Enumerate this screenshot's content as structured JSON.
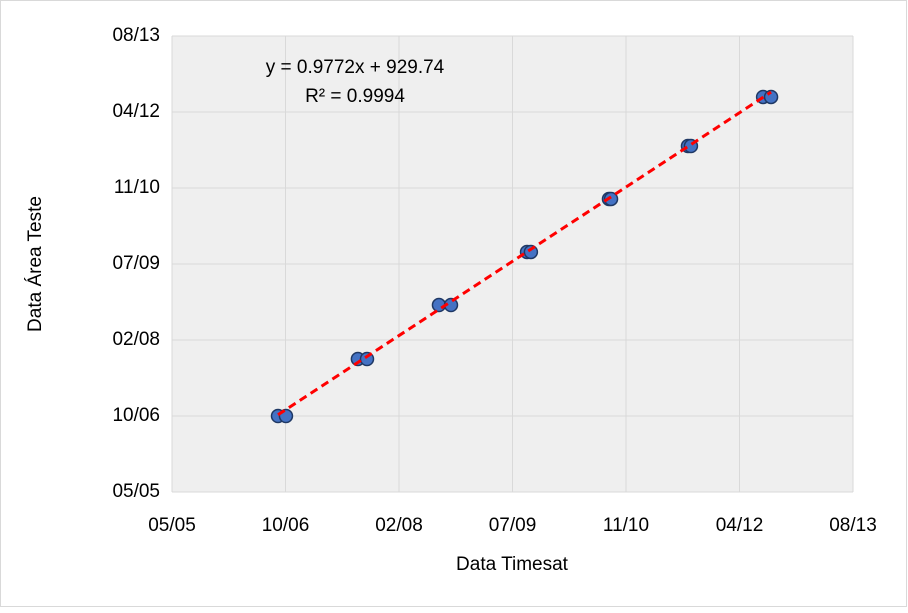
{
  "chart_data": {
    "type": "scatter",
    "x_label": "Data Timesat",
    "y_label": "Data Área Teste",
    "x": [
      38967,
      39002,
      39319,
      39359,
      39676,
      39729,
      40064,
      40081,
      40425,
      40434,
      40773,
      40786,
      41104,
      41139
    ],
    "series": [
      {
        "color": "#4472c4",
        "values": [
          39000,
          39000,
          39375,
          39375,
          39730,
          39730,
          40079,
          40079,
          40428,
          40428,
          40776,
          40776,
          41099,
          41099
        ]
      }
    ],
    "trendline": {
      "equation": "y = 0.9772x + 929.74",
      "r_squared": "R² = 0.9994",
      "slope": 0.9772,
      "intercept": 929.74,
      "color": "#ff0000"
    },
    "xlim": [
      38500,
      41500
    ],
    "ylim": [
      38500,
      41500
    ],
    "xticks": [
      {
        "value": 38500,
        "label": "05/05"
      },
      {
        "value": 39000,
        "label": "10/06"
      },
      {
        "value": 39500,
        "label": "02/08"
      },
      {
        "value": 40000,
        "label": "07/09"
      },
      {
        "value": 40500,
        "label": "11/10"
      },
      {
        "value": 41000,
        "label": "04/12"
      },
      {
        "value": 41500,
        "label": "08/13"
      }
    ],
    "yticks": [
      {
        "value": 38500,
        "label": "05/05"
      },
      {
        "value": 39000,
        "label": "10/06"
      },
      {
        "value": 39500,
        "label": "02/08"
      },
      {
        "value": 40000,
        "label": "07/09"
      },
      {
        "value": 40500,
        "label": "11/10"
      },
      {
        "value": 41000,
        "label": "04/12"
      },
      {
        "value": 41500,
        "label": "08/13"
      }
    ],
    "grid": true
  }
}
